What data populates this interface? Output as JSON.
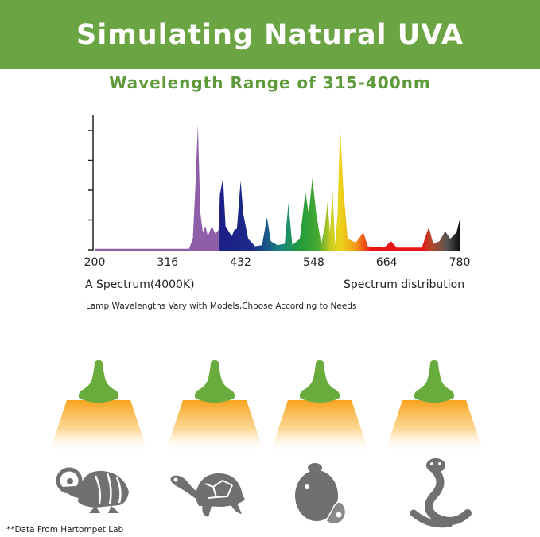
{
  "header": {
    "title": "Simulating Natural UVA",
    "subtitle": "Wavelength Range of 315-400nm"
  },
  "colors": {
    "brand_green": "#6ba442",
    "light_orange": "#f7a21c",
    "icon_gray": "#707070"
  },
  "chart_data": {
    "type": "area",
    "title": "",
    "xlabel": "",
    "ylabel": "",
    "xlim": [
      200,
      780
    ],
    "ylim": [
      0,
      1.05
    ],
    "x_ticks": [
      "200",
      "316",
      "432",
      "548",
      "664",
      "780"
    ],
    "y_tick_count": 5,
    "y_tick_labels_shown": false,
    "grid": false,
    "fill": "wavelength-colored spectrum",
    "points": [
      [
        200,
        0.02
      ],
      [
        350,
        0.02
      ],
      [
        356,
        0.1
      ],
      [
        360,
        0.5
      ],
      [
        364,
        1.0
      ],
      [
        368,
        0.3
      ],
      [
        372,
        0.15
      ],
      [
        376,
        0.2
      ],
      [
        380,
        0.12
      ],
      [
        386,
        0.2
      ],
      [
        392,
        0.14
      ],
      [
        397,
        0.17
      ],
      [
        399,
        0.45
      ],
      [
        404,
        0.58
      ],
      [
        408,
        0.2
      ],
      [
        414,
        0.15
      ],
      [
        418,
        0.12
      ],
      [
        422,
        0.17
      ],
      [
        426,
        0.18
      ],
      [
        432,
        0.56
      ],
      [
        436,
        0.3
      ],
      [
        444,
        0.1
      ],
      [
        455,
        0.04
      ],
      [
        466,
        0.05
      ],
      [
        474,
        0.27
      ],
      [
        480,
        0.08
      ],
      [
        490,
        0.05
      ],
      [
        502,
        0.06
      ],
      [
        508,
        0.38
      ],
      [
        514,
        0.05
      ],
      [
        526,
        0.1
      ],
      [
        535,
        0.47
      ],
      [
        540,
        0.3
      ],
      [
        546,
        0.58
      ],
      [
        552,
        0.3
      ],
      [
        560,
        0.06
      ],
      [
        566,
        0.2
      ],
      [
        570,
        0.39
      ],
      [
        574,
        0.15
      ],
      [
        578,
        0.49
      ],
      [
        582,
        0.05
      ],
      [
        586,
        0.3
      ],
      [
        590,
        1.0
      ],
      [
        595,
        0.5
      ],
      [
        602,
        0.1
      ],
      [
        615,
        0.07
      ],
      [
        627,
        0.15
      ],
      [
        634,
        0.04
      ],
      [
        660,
        0.03
      ],
      [
        671,
        0.08
      ],
      [
        680,
        0.03
      ],
      [
        720,
        0.03
      ],
      [
        728,
        0.15
      ],
      [
        731,
        0.19
      ],
      [
        738,
        0.06
      ],
      [
        748,
        0.08
      ],
      [
        757,
        0.16
      ],
      [
        765,
        0.1
      ],
      [
        775,
        0.15
      ],
      [
        780,
        0.25
      ]
    ],
    "color_stops": [
      [
        200,
        "#8e5ea8"
      ],
      [
        397,
        "#8e5ea8"
      ],
      [
        399,
        "#1c1f86"
      ],
      [
        450,
        "#1c2a88"
      ],
      [
        475,
        "#1a5a8a"
      ],
      [
        500,
        "#1a8a7a"
      ],
      [
        525,
        "#1f9a3a"
      ],
      [
        555,
        "#4aa832"
      ],
      [
        575,
        "#c8cc20"
      ],
      [
        590,
        "#ecd51a"
      ],
      [
        615,
        "#f39a1a"
      ],
      [
        640,
        "#e81414"
      ],
      [
        720,
        "#e81414"
      ],
      [
        735,
        "#b4472a"
      ],
      [
        760,
        "#555555"
      ],
      [
        780,
        "#0e0e0e"
      ]
    ],
    "caption_left": "A Spectrum(4000K)",
    "caption_right": "Spectrum distribution"
  },
  "note": "Lamp Wavelengths Vary with Models,Choose According to Needs",
  "animals": [
    "chameleon",
    "tortoise",
    "bearded-dragon",
    "snake"
  ],
  "footnote": "**Data From Hartompet Lab"
}
